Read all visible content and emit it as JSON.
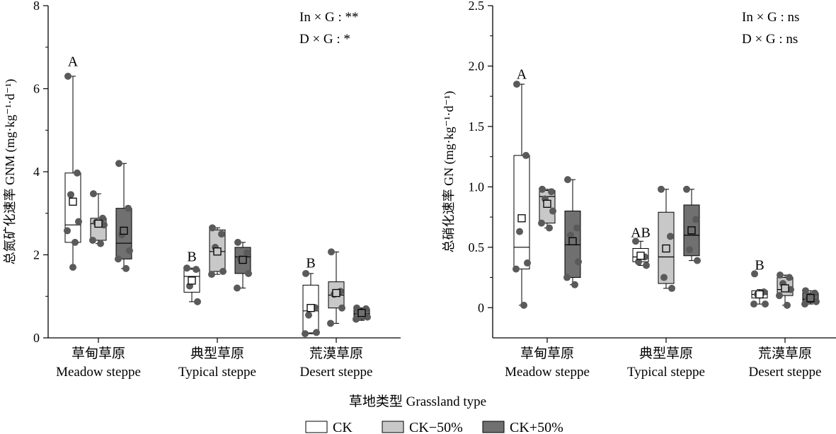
{
  "figure": {
    "xlabel": "草地类型 Grassland type",
    "legend": [
      {
        "name": "CK",
        "color": "#ffffff"
      },
      {
        "name": "CK−50%",
        "color": "#c8c8c8"
      },
      {
        "name": "CK+50%",
        "color": "#707070"
      }
    ]
  },
  "chart_data": [
    {
      "type": "box",
      "ylabel": "总氮矿化速率 GNM (mg·kg⁻¹·d⁻¹)",
      "ylim": [
        0,
        8
      ],
      "yticks": [
        0,
        2,
        4,
        6,
        8
      ],
      "ytick_labels": [
        "0",
        "2",
        "4",
        "6",
        "8"
      ],
      "categories": [
        {
          "zh": "草甸草原",
          "en": "Meadow steppe",
          "letter": "A",
          "letter_y": 6.65
        },
        {
          "zh": "典型草原",
          "en": "Typical steppe",
          "letter": "B",
          "letter_y": 1.95
        },
        {
          "zh": "荒漠草原",
          "en": "Desert steppe",
          "letter": "B",
          "letter_y": 1.8
        }
      ],
      "annotations": [
        "In × G : **",
        "D × G : *"
      ],
      "groups": [
        [
          {
            "series": "CK",
            "q1": 2.3,
            "median": 2.72,
            "q3": 3.97,
            "mean": 3.28,
            "whisker_low": 1.7,
            "whisker_high": 6.3,
            "points": [
              6.3,
              3.97,
              3.45,
              2.8,
              2.58,
              2.3,
              1.7
            ]
          },
          {
            "series": "CK−50%",
            "q1": 2.35,
            "median": 2.75,
            "q3": 2.88,
            "mean": 2.75,
            "whisker_low": 2.27,
            "whisker_high": 3.47,
            "points": [
              3.47,
              2.88,
              2.78,
              2.72,
              2.35,
              2.27
            ]
          },
          {
            "series": "CK+50%",
            "q1": 1.9,
            "median": 2.28,
            "q3": 3.12,
            "mean": 2.58,
            "whisker_low": 1.67,
            "whisker_high": 4.2,
            "points": [
              4.2,
              3.12,
              2.48,
              2.1,
              1.9,
              1.67
            ]
          }
        ],
        [
          {
            "series": "CK",
            "q1": 1.1,
            "median": 1.48,
            "q3": 1.65,
            "mean": 1.38,
            "whisker_low": 0.87,
            "whisker_high": 1.68,
            "points": [
              1.68,
              1.65,
              1.25,
              0.87
            ]
          },
          {
            "series": "CK−50%",
            "q1": 1.6,
            "median": 2.08,
            "q3": 2.6,
            "mean": 2.08,
            "whisker_low": 1.53,
            "whisker_high": 2.65,
            "points": [
              2.65,
              2.5,
              2.18,
              1.6,
              1.53
            ]
          },
          {
            "series": "CK+50%",
            "q1": 1.55,
            "median": 1.95,
            "q3": 2.18,
            "mean": 1.88,
            "whisker_low": 1.2,
            "whisker_high": 2.3,
            "points": [
              2.3,
              2.05,
              1.9,
              1.55,
              1.2
            ]
          }
        ],
        [
          {
            "series": "CK",
            "q1": 0.12,
            "median": 0.65,
            "q3": 1.27,
            "mean": 0.72,
            "whisker_low": 0.1,
            "whisker_high": 1.55,
            "points": [
              1.55,
              0.73,
              0.55,
              0.13,
              0.1
            ]
          },
          {
            "series": "CK−50%",
            "q1": 0.72,
            "median": 1.03,
            "q3": 1.35,
            "mean": 1.08,
            "whisker_low": 0.35,
            "whisker_high": 2.07,
            "points": [
              2.07,
              1.12,
              1.05,
              0.72,
              0.35
            ]
          },
          {
            "series": "CK+50%",
            "q1": 0.45,
            "median": 0.58,
            "q3": 0.7,
            "mean": 0.6,
            "whisker_low": 0.42,
            "whisker_high": 0.72,
            "points": [
              0.72,
              0.7,
              0.6,
              0.5,
              0.45
            ]
          }
        ]
      ]
    },
    {
      "type": "box",
      "ylabel": "总硝化速率 GN (mg·kg⁻¹·d⁻¹)",
      "ylim": [
        -0.25,
        2.5
      ],
      "yticks": [
        0,
        0.5,
        1.0,
        1.5,
        2.0,
        2.5
      ],
      "ytick_labels": [
        "0",
        "0.5",
        "1.0",
        "1.5",
        "2.0",
        "2.5"
      ],
      "categories": [
        {
          "zh": "草甸草原",
          "en": "Meadow steppe",
          "letter": "A",
          "letter_y": 1.93
        },
        {
          "zh": "典型草原",
          "en": "Typical steppe",
          "letter": "AB",
          "letter_y": 0.62
        },
        {
          "zh": "荒漠草原",
          "en": "Desert steppe",
          "letter": "B",
          "letter_y": 0.35
        }
      ],
      "annotations": [
        "In × G : ns",
        "D × G : ns"
      ],
      "groups": [
        [
          {
            "series": "CK",
            "q1": 0.32,
            "median": 0.5,
            "q3": 1.26,
            "mean": 0.74,
            "whisker_low": 0.02,
            "whisker_high": 1.85,
            "points": [
              1.85,
              1.26,
              0.63,
              0.37,
              0.32,
              0.02
            ]
          },
          {
            "series": "CK−50%",
            "q1": 0.7,
            "median": 0.92,
            "q3": 0.97,
            "mean": 0.86,
            "whisker_low": 0.66,
            "whisker_high": 0.98,
            "points": [
              0.98,
              0.96,
              0.9,
              0.8,
              0.7,
              0.66
            ]
          },
          {
            "series": "CK+50%",
            "q1": 0.25,
            "median": 0.52,
            "q3": 0.8,
            "mean": 0.55,
            "whisker_low": 0.19,
            "whisker_high": 1.06,
            "points": [
              1.06,
              0.66,
              0.6,
              0.38,
              0.25,
              0.19
            ]
          }
        ],
        [
          {
            "series": "CK",
            "q1": 0.38,
            "median": 0.42,
            "q3": 0.49,
            "mean": 0.43,
            "whisker_low": 0.35,
            "whisker_high": 0.55,
            "points": [
              0.55,
              0.42,
              0.38,
              0.35
            ]
          },
          {
            "series": "CK−50%",
            "q1": 0.2,
            "median": 0.42,
            "q3": 0.79,
            "mean": 0.49,
            "whisker_low": 0.16,
            "whisker_high": 0.98,
            "points": [
              0.98,
              0.59,
              0.25,
              0.16
            ]
          },
          {
            "series": "CK+50%",
            "q1": 0.43,
            "median": 0.6,
            "q3": 0.85,
            "mean": 0.64,
            "whisker_low": 0.39,
            "whisker_high": 0.98,
            "points": [
              0.98,
              0.73,
              0.48,
              0.39
            ]
          }
        ],
        [
          {
            "series": "CK",
            "q1": 0.08,
            "median": 0.11,
            "q3": 0.14,
            "mean": 0.11,
            "whisker_low": 0.03,
            "whisker_high": 0.15,
            "points": [
              0.28,
              0.13,
              0.11,
              0.03,
              0.03
            ]
          },
          {
            "series": "CK−50%",
            "q1": 0.1,
            "median": 0.15,
            "q3": 0.25,
            "mean": 0.16,
            "whisker_low": 0.02,
            "whisker_high": 0.27,
            "points": [
              0.27,
              0.25,
              0.2,
              0.15,
              0.1,
              0.02
            ]
          },
          {
            "series": "CK+50%",
            "q1": 0.04,
            "median": 0.07,
            "q3": 0.12,
            "mean": 0.08,
            "whisker_low": 0.03,
            "whisker_high": 0.14,
            "points": [
              0.14,
              0.12,
              0.08,
              0.05,
              0.03
            ]
          }
        ]
      ]
    }
  ]
}
